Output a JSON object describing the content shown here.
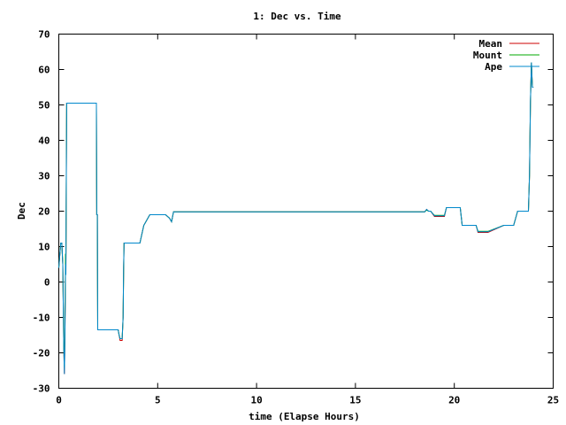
{
  "chart_data": {
    "type": "line",
    "title": "1: Dec vs. Time",
    "xlabel": "time (Elapse Hours)",
    "ylabel": "Dec",
    "xlim": [
      0,
      25
    ],
    "ylim": [
      -30,
      70
    ],
    "xticks": [
      0,
      5,
      10,
      15,
      20,
      25
    ],
    "yticks": [
      -30,
      -20,
      -10,
      0,
      10,
      20,
      30,
      40,
      50,
      60,
      70
    ],
    "grid": false,
    "legend_position": "top-right",
    "series": [
      {
        "name": "Mean",
        "color": "#cc0000",
        "x": [
          0,
          0.1,
          0.15,
          0.2,
          0.25,
          0.28,
          0.3,
          0.32,
          0.34,
          0.36,
          0.38,
          0.4,
          0.42,
          0.44,
          0.46,
          0.5,
          0.55,
          1.9,
          1.92,
          1.95,
          1.97,
          3.0,
          3.05,
          3.1,
          3.15,
          3.2,
          3.25,
          3.28,
          3.3,
          3.35,
          3.4,
          4.1,
          4.3,
          4.4,
          4.6,
          4.8,
          5.0,
          5.4,
          5.6,
          5.7,
          5.8,
          6.0,
          10,
          15,
          18.5,
          18.6,
          18.7,
          18.8,
          19.0,
          19.1,
          19.5,
          19.6,
          20.2,
          20.3,
          20.4,
          21.0,
          21.1,
          21.2,
          21.6,
          21.7,
          22.5,
          22.9,
          23.0,
          23.2,
          23.7,
          23.72,
          23.75,
          23.8,
          23.85,
          23.9,
          23.95,
          24.0
        ],
        "values": [
          4,
          11,
          11,
          5,
          -18,
          -26,
          -20,
          -8,
          5,
          2,
          30,
          50.5,
          50.5,
          50.5,
          50.5,
          50.5,
          50.5,
          50.5,
          19,
          19,
          -13.5,
          -13.5,
          -15,
          -16.5,
          -16.5,
          -16.5,
          -10,
          4,
          11,
          11,
          11,
          11,
          16,
          17,
          19,
          19,
          19,
          19,
          18,
          17,
          19.8,
          19.8,
          19.8,
          19.8,
          19.8,
          20.5,
          20,
          20,
          18.5,
          18.5,
          18.5,
          21,
          21,
          21,
          16,
          16,
          16,
          14,
          14,
          14,
          16,
          16,
          16,
          20,
          20,
          20,
          20,
          30,
          51,
          62,
          55,
          55
        ]
      },
      {
        "name": "Mount",
        "color": "#00aa00",
        "x": [
          0,
          0.1,
          0.15,
          0.2,
          0.25,
          0.28,
          0.3,
          0.32,
          0.34,
          0.36,
          0.38,
          0.4,
          0.42,
          0.44,
          0.46,
          0.5,
          0.55,
          1.9,
          1.92,
          1.95,
          1.97,
          3.0,
          3.05,
          3.1,
          3.15,
          3.2,
          3.25,
          3.28,
          3.3,
          3.35,
          3.4,
          4.1,
          4.3,
          4.4,
          4.6,
          4.8,
          5.0,
          5.4,
          5.6,
          5.7,
          5.8,
          6.0,
          10,
          15,
          18.5,
          18.6,
          18.7,
          18.8,
          19.0,
          19.1,
          19.5,
          19.6,
          20.2,
          20.3,
          20.4,
          21.0,
          21.1,
          21.2,
          21.6,
          21.7,
          22.5,
          22.9,
          23.0,
          23.2,
          23.7,
          23.72,
          23.75,
          23.8,
          23.85,
          23.9,
          23.95,
          24.0
        ],
        "values": [
          4,
          11,
          11,
          5,
          -18,
          -24,
          -18,
          -5,
          8,
          5,
          32,
          50.5,
          50.5,
          50.5,
          50.5,
          50.5,
          50.5,
          50.5,
          19,
          19,
          -13.5,
          -13.5,
          -15,
          -16,
          -16,
          -16,
          -10,
          4,
          11,
          11,
          11,
          11,
          16,
          17,
          19,
          19,
          19,
          19,
          18,
          17,
          19.8,
          19.8,
          19.8,
          19.8,
          19.8,
          20.3,
          20,
          20,
          18.8,
          18.8,
          18.8,
          21,
          21,
          21,
          16,
          16,
          16,
          14.3,
          14.3,
          14.3,
          16,
          16,
          16,
          20,
          20,
          20,
          20,
          30,
          51,
          62,
          55,
          55
        ]
      },
      {
        "name": "Ape",
        "color": "#0088cc",
        "x": [
          0,
          0.1,
          0.15,
          0.2,
          0.25,
          0.28,
          0.3,
          0.32,
          0.34,
          0.36,
          0.38,
          0.4,
          0.42,
          0.44,
          0.46,
          0.5,
          0.55,
          1.9,
          1.92,
          1.95,
          1.97,
          3.0,
          3.05,
          3.1,
          3.15,
          3.2,
          3.25,
          3.28,
          3.3,
          3.35,
          3.4,
          4.1,
          4.3,
          4.4,
          4.6,
          4.8,
          5.0,
          5.4,
          5.6,
          5.7,
          5.8,
          6.0,
          10,
          15,
          18.5,
          18.6,
          18.7,
          18.8,
          19.0,
          19.1,
          19.5,
          19.6,
          20.2,
          20.3,
          20.4,
          21.0,
          21.1,
          21.2,
          21.6,
          21.7,
          22.5,
          22.9,
          23.0,
          23.2,
          23.7,
          23.72,
          23.75,
          23.8,
          23.85,
          23.9,
          23.95,
          24.0
        ],
        "values": [
          4,
          11,
          11,
          5,
          -18,
          -26,
          -20,
          -8,
          5,
          2,
          30,
          50.5,
          50.5,
          50.5,
          50.5,
          50.5,
          50.5,
          50.5,
          19,
          19,
          -13.5,
          -13.5,
          -15,
          -16,
          -16,
          -16,
          -10,
          4,
          11,
          11,
          11,
          11,
          16,
          17,
          19,
          19,
          19,
          19,
          18,
          17,
          19.8,
          19.8,
          19.8,
          19.8,
          19.8,
          20.5,
          20,
          20,
          18.7,
          18.7,
          18.7,
          21,
          21,
          21,
          16,
          16,
          16,
          14.2,
          14.2,
          14.2,
          16,
          16,
          16,
          20,
          20,
          20,
          20,
          30,
          51,
          62,
          55,
          55
        ]
      }
    ]
  }
}
